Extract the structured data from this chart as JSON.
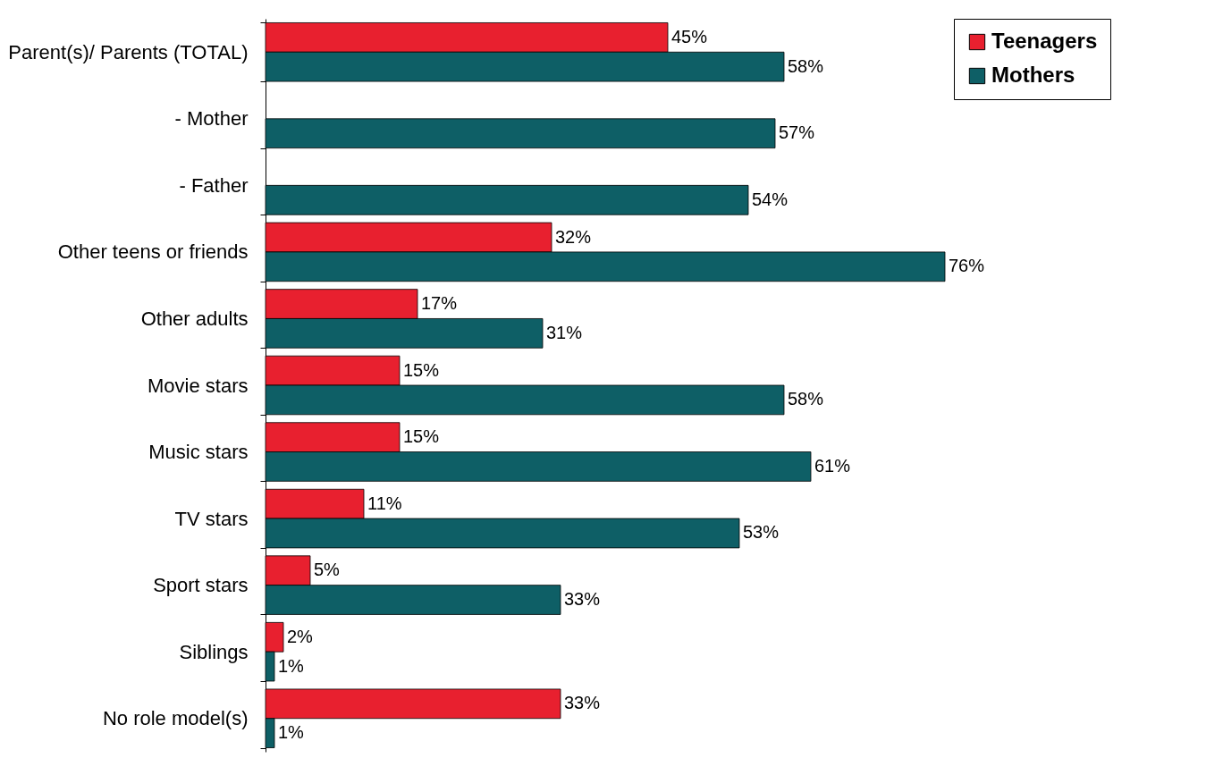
{
  "chart_data": {
    "type": "bar",
    "orientation": "horizontal",
    "categories": [
      "Parent(s)/ Parents (TOTAL)",
      "- Mother",
      "- Father",
      "Other teens or friends",
      "Other adults",
      "Movie stars",
      "Music stars",
      "TV stars",
      "Sport stars",
      "Siblings",
      "No role model(s)"
    ],
    "series": [
      {
        "name": "Teenagers",
        "color": "#e8202f",
        "values": [
          45,
          null,
          null,
          32,
          17,
          15,
          15,
          11,
          5,
          2,
          33
        ],
        "value_labels": [
          "45%",
          null,
          null,
          "32%",
          "17%",
          "15%",
          "15%",
          "11%",
          "5%",
          "2%",
          "33%"
        ]
      },
      {
        "name": "Mothers",
        "color": "#0e5f66",
        "values": [
          58,
          57,
          54,
          76,
          31,
          58,
          61,
          53,
          33,
          1,
          1
        ],
        "value_labels": [
          "58%",
          "57%",
          "54%",
          "76%",
          "31%",
          "58%",
          "61%",
          "53%",
          "33%",
          "1%",
          "1%"
        ]
      }
    ],
    "legend": "right"
  }
}
